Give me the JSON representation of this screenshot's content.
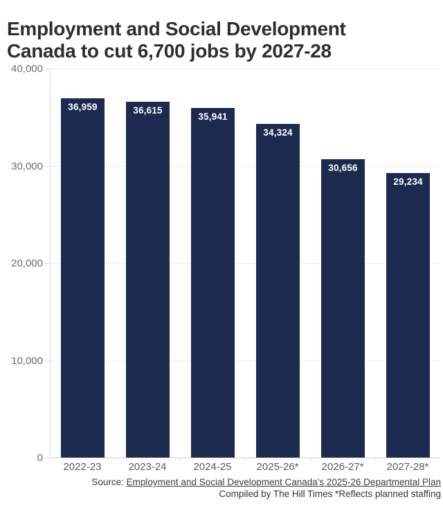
{
  "header": {
    "title_line1": "Employment and Social Development",
    "title_line2": "Canada to cut 6,700 jobs by 2027-28"
  },
  "chart_data": {
    "type": "bar",
    "title": "Employment and Social Development Canada to cut 6,700 jobs by 2027-28",
    "categories": [
      "2022-23",
      "2023-24",
      "2024-25",
      "2025-26*",
      "2026-27*",
      "2027-28*"
    ],
    "values": [
      36959,
      36615,
      35941,
      34324,
      30656,
      29234
    ],
    "value_labels": [
      "36,959",
      "36,615",
      "35,941",
      "34,324",
      "30,656",
      "29,234"
    ],
    "xlabel": "",
    "ylabel": "",
    "ylim": [
      0,
      40000
    ],
    "yticks": [
      {
        "value": 0,
        "label": "0"
      },
      {
        "value": 10000,
        "label": "10,000"
      },
      {
        "value": 20000,
        "label": "20,000"
      },
      {
        "value": 30000,
        "label": "30,000"
      },
      {
        "value": 40000,
        "label": "40,000"
      }
    ],
    "grid": "horizontal",
    "legend": "none",
    "bar_color": "#1b2a4e",
    "value_label_color": "#ffffff"
  },
  "footer": {
    "source_prefix": "Source: ",
    "source_link": "Employment and Social Development Canada's 2025-26 Departmental Plan",
    "compiled": "Compiled by The Hill Times *Reflects planned staffing"
  },
  "colors": {
    "background": "#ffffff",
    "title": "#2e2e2e",
    "bar": "#1b2a4e",
    "gridline": "#ececec",
    "axis_line": "#cfcfcf",
    "axis_label": "#6b6b6b",
    "footer_text": "#3d3d3d"
  }
}
